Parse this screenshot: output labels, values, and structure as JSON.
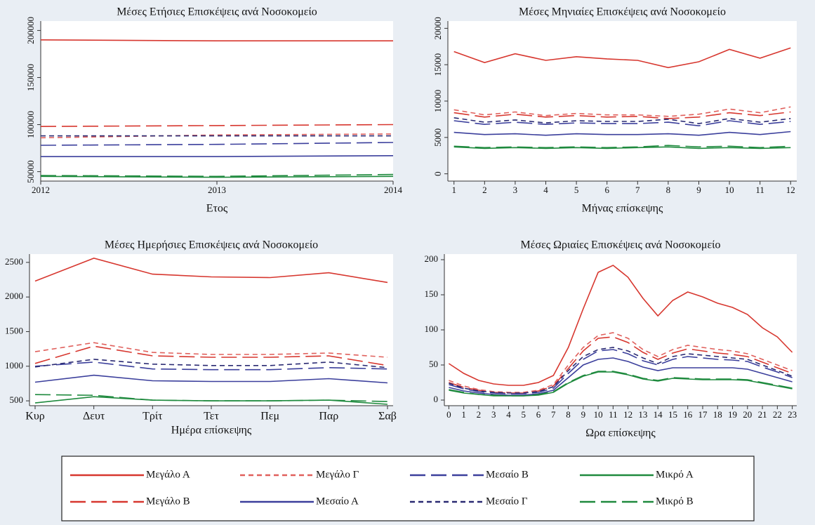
{
  "chart_data": [
    {
      "type": "line",
      "title": "Μέσες Ετήσιες Επισκέψεις ανά Νοσοκομείο",
      "x_label": "Ετος",
      "x": [
        2012,
        2013,
        2014
      ],
      "xlim": [
        2012,
        2014
      ],
      "xticks": [
        2012,
        2013,
        2014
      ],
      "ylim": [
        40000,
        210000
      ],
      "yticks": [
        50000,
        100000,
        150000,
        200000
      ],
      "series": [
        {
          "name": "Μεγάλο Α",
          "color": "#d7372f",
          "dash": "solid",
          "values": [
            190000,
            189000,
            189000
          ]
        },
        {
          "name": "Μεγάλο Β",
          "color": "#d7372f",
          "dash": "long",
          "values": [
            98000,
            99000,
            100000
          ]
        },
        {
          "name": "Μεγάλο Γ",
          "color": "#e0605c",
          "dash": "short",
          "values": [
            86000,
            89000,
            90000
          ]
        },
        {
          "name": "Μεσαίο Α",
          "color": "#3b3f9c",
          "dash": "solid",
          "values": [
            66000,
            66000,
            67000
          ]
        },
        {
          "name": "Μεσαίο Β",
          "color": "#3b3f9c",
          "dash": "long",
          "values": [
            78000,
            79000,
            81000
          ]
        },
        {
          "name": "Μεσαίο Γ",
          "color": "#2a2a72",
          "dash": "short",
          "values": [
            88000,
            88000,
            88000
          ]
        },
        {
          "name": "Μικρό Α",
          "color": "#1f8a3e",
          "dash": "solid",
          "values": [
            45000,
            44000,
            45000
          ]
        },
        {
          "name": "Μικρό Β",
          "color": "#1f8a3e",
          "dash": "long",
          "values": [
            46000,
            45000,
            47000
          ]
        }
      ]
    },
    {
      "type": "line",
      "title": "Μέσες Μηνιαίες Επισκέψεις ανά Νοσοκομείο",
      "x_label": "Μήνας επίσκεψης",
      "x": [
        1,
        2,
        3,
        4,
        5,
        6,
        7,
        8,
        9,
        10,
        11,
        12
      ],
      "xlim": [
        0.8,
        12.2
      ],
      "xticks": [
        1,
        2,
        3,
        4,
        5,
        6,
        7,
        8,
        9,
        10,
        11,
        12
      ],
      "ylim": [
        -1000,
        21000
      ],
      "yticks": [
        0,
        5000,
        10000,
        15000,
        20000
      ],
      "series": [
        {
          "name": "Μεγάλο Α",
          "color": "#d7372f",
          "dash": "solid",
          "values": [
            16800,
            15300,
            16500,
            15600,
            16100,
            15800,
            15600,
            14600,
            15400,
            17100,
            15900,
            17300
          ]
        },
        {
          "name": "Μεγάλο Β",
          "color": "#d7372f",
          "dash": "long",
          "values": [
            8400,
            7800,
            8200,
            7800,
            8000,
            7800,
            7900,
            7600,
            7800,
            8400,
            8000,
            8500
          ]
        },
        {
          "name": "Μεγάλο Γ",
          "color": "#e0605c",
          "dash": "short",
          "values": [
            8800,
            8100,
            8500,
            8000,
            8300,
            8100,
            8100,
            7900,
            8200,
            8900,
            8400,
            9200
          ]
        },
        {
          "name": "Μεσαίο Α",
          "color": "#3b3f9c",
          "dash": "solid",
          "values": [
            5700,
            5400,
            5500,
            5300,
            5500,
            5400,
            5400,
            5500,
            5300,
            5700,
            5400,
            5800
          ]
        },
        {
          "name": "Μεσαίο Β",
          "color": "#3b3f9c",
          "dash": "long",
          "values": [
            7300,
            6800,
            7100,
            6800,
            7000,
            6900,
            6900,
            7100,
            6600,
            7300,
            6800,
            7200
          ]
        },
        {
          "name": "Μεσαίο Γ",
          "color": "#2a2a72",
          "dash": "short",
          "values": [
            7700,
            7100,
            7400,
            7000,
            7300,
            7200,
            7200,
            7500,
            6900,
            7600,
            7100,
            7600
          ]
        },
        {
          "name": "Μικρό Α",
          "color": "#1f8a3e",
          "dash": "solid",
          "values": [
            3700,
            3500,
            3600,
            3500,
            3600,
            3500,
            3600,
            3700,
            3500,
            3600,
            3500,
            3600
          ]
        },
        {
          "name": "Μικρό Β",
          "color": "#1f8a3e",
          "dash": "long",
          "values": [
            3800,
            3600,
            3700,
            3600,
            3700,
            3600,
            3700,
            3900,
            3700,
            3800,
            3600,
            3800
          ]
        }
      ]
    },
    {
      "type": "line",
      "title": "Μέσες Ημερήσιες Επισκέψεις ανά Νοσοκομείο",
      "x_label": "Ημέρα επίσκεψης",
      "categories": [
        "Κυρ",
        "Δευτ",
        "Τρίτ",
        "Τετ",
        "Πεμ",
        "Παρ",
        "Σαβ"
      ],
      "ylim": [
        430,
        2620
      ],
      "yticks": [
        500,
        1000,
        1500,
        2000,
        2500
      ],
      "series": [
        {
          "name": "Μεγάλο Α",
          "color": "#d7372f",
          "dash": "solid",
          "values": [
            2230,
            2560,
            2330,
            2290,
            2280,
            2350,
            2210
          ]
        },
        {
          "name": "Μεγάλο Β",
          "color": "#d7372f",
          "dash": "long",
          "values": [
            1040,
            1290,
            1150,
            1130,
            1130,
            1150,
            1010
          ]
        },
        {
          "name": "Μεγάλο Γ",
          "color": "#e0605c",
          "dash": "short",
          "values": [
            1210,
            1340,
            1200,
            1170,
            1170,
            1190,
            1130
          ]
        },
        {
          "name": "Μεσαίο Α",
          "color": "#3b3f9c",
          "dash": "solid",
          "values": [
            770,
            870,
            790,
            780,
            780,
            820,
            760
          ]
        },
        {
          "name": "Μεσαίο Β",
          "color": "#3b3f9c",
          "dash": "long",
          "values": [
            1000,
            1060,
            960,
            950,
            950,
            980,
            960
          ]
        },
        {
          "name": "Μεσαίο Γ",
          "color": "#2a2a72",
          "dash": "short",
          "values": [
            990,
            1100,
            1030,
            1010,
            1010,
            1060,
            980
          ]
        },
        {
          "name": "Μικρό Α",
          "color": "#1f8a3e",
          "dash": "solid",
          "values": [
            470,
            560,
            510,
            500,
            500,
            510,
            450
          ]
        },
        {
          "name": "Μικρό Β",
          "color": "#1f8a3e",
          "dash": "long",
          "values": [
            590,
            580,
            510,
            500,
            500,
            510,
            490
          ]
        }
      ]
    },
    {
      "type": "line",
      "title": "Μέσες Ωριαίες Επισκέψεις ανά Νοσοκομείο",
      "x_label": "Ωρα επίσκεψης",
      "x": [
        0,
        1,
        2,
        3,
        4,
        5,
        6,
        7,
        8,
        9,
        10,
        11,
        12,
        13,
        14,
        15,
        16,
        17,
        18,
        19,
        20,
        21,
        22,
        23
      ],
      "xlim": [
        -0.3,
        23.3
      ],
      "xticks": [
        0,
        1,
        2,
        3,
        4,
        5,
        6,
        7,
        8,
        9,
        10,
        11,
        12,
        13,
        14,
        15,
        16,
        17,
        18,
        19,
        20,
        21,
        22,
        23
      ],
      "ylim": [
        -8,
        208
      ],
      "yticks": [
        0,
        50,
        100,
        150,
        200
      ],
      "series": [
        {
          "name": "Μεγάλο Α",
          "color": "#d7372f",
          "dash": "solid",
          "values": [
            52,
            38,
            28,
            23,
            21,
            21,
            25,
            35,
            75,
            130,
            182,
            192,
            175,
            145,
            120,
            142,
            154,
            147,
            138,
            132,
            122,
            103,
            90,
            68
          ]
        },
        {
          "name": "Μεγάλο Β",
          "color": "#d7372f",
          "dash": "long",
          "values": [
            25,
            18,
            14,
            11,
            10,
            10,
            13,
            20,
            45,
            70,
            88,
            90,
            82,
            68,
            58,
            67,
            73,
            70,
            67,
            65,
            62,
            54,
            46,
            38
          ]
        },
        {
          "name": "Μεγάλο Γ",
          "color": "#e0605c",
          "dash": "short",
          "values": [
            28,
            20,
            15,
            12,
            11,
            11,
            14,
            22,
            50,
            75,
            92,
            96,
            88,
            72,
            62,
            72,
            78,
            75,
            72,
            70,
            66,
            58,
            50,
            42
          ]
        },
        {
          "name": "Μεσαίο Α",
          "color": "#3b3f9c",
          "dash": "solid",
          "values": [
            18,
            13,
            10,
            8,
            7,
            7,
            9,
            14,
            32,
            50,
            58,
            60,
            55,
            47,
            42,
            46,
            46,
            46,
            46,
            46,
            44,
            38,
            32,
            26
          ]
        },
        {
          "name": "Μεσαίο Β",
          "color": "#3b3f9c",
          "dash": "long",
          "values": [
            22,
            16,
            12,
            10,
            9,
            9,
            11,
            17,
            38,
            58,
            70,
            72,
            66,
            56,
            50,
            58,
            62,
            60,
            58,
            57,
            55,
            47,
            40,
            32
          ]
        },
        {
          "name": "Μεσαίο Γ",
          "color": "#2a2a72",
          "dash": "short",
          "values": [
            24,
            17,
            13,
            11,
            10,
            10,
            12,
            19,
            42,
            62,
            72,
            75,
            70,
            60,
            52,
            62,
            66,
            64,
            62,
            60,
            58,
            50,
            42,
            34
          ]
        },
        {
          "name": "Μικρό Α",
          "color": "#1f8a3e",
          "dash": "solid",
          "values": [
            14,
            10,
            8,
            6,
            6,
            6,
            7,
            11,
            24,
            34,
            40,
            40,
            36,
            30,
            27,
            31,
            30,
            29,
            29,
            29,
            28,
            24,
            20,
            16
          ]
        },
        {
          "name": "Μικρό Β",
          "color": "#1f8a3e",
          "dash": "long",
          "values": [
            15,
            11,
            8,
            7,
            6,
            6,
            8,
            12,
            25,
            35,
            41,
            41,
            37,
            31,
            28,
            32,
            31,
            30,
            30,
            30,
            29,
            25,
            21,
            17
          ]
        }
      ]
    }
  ]
}
